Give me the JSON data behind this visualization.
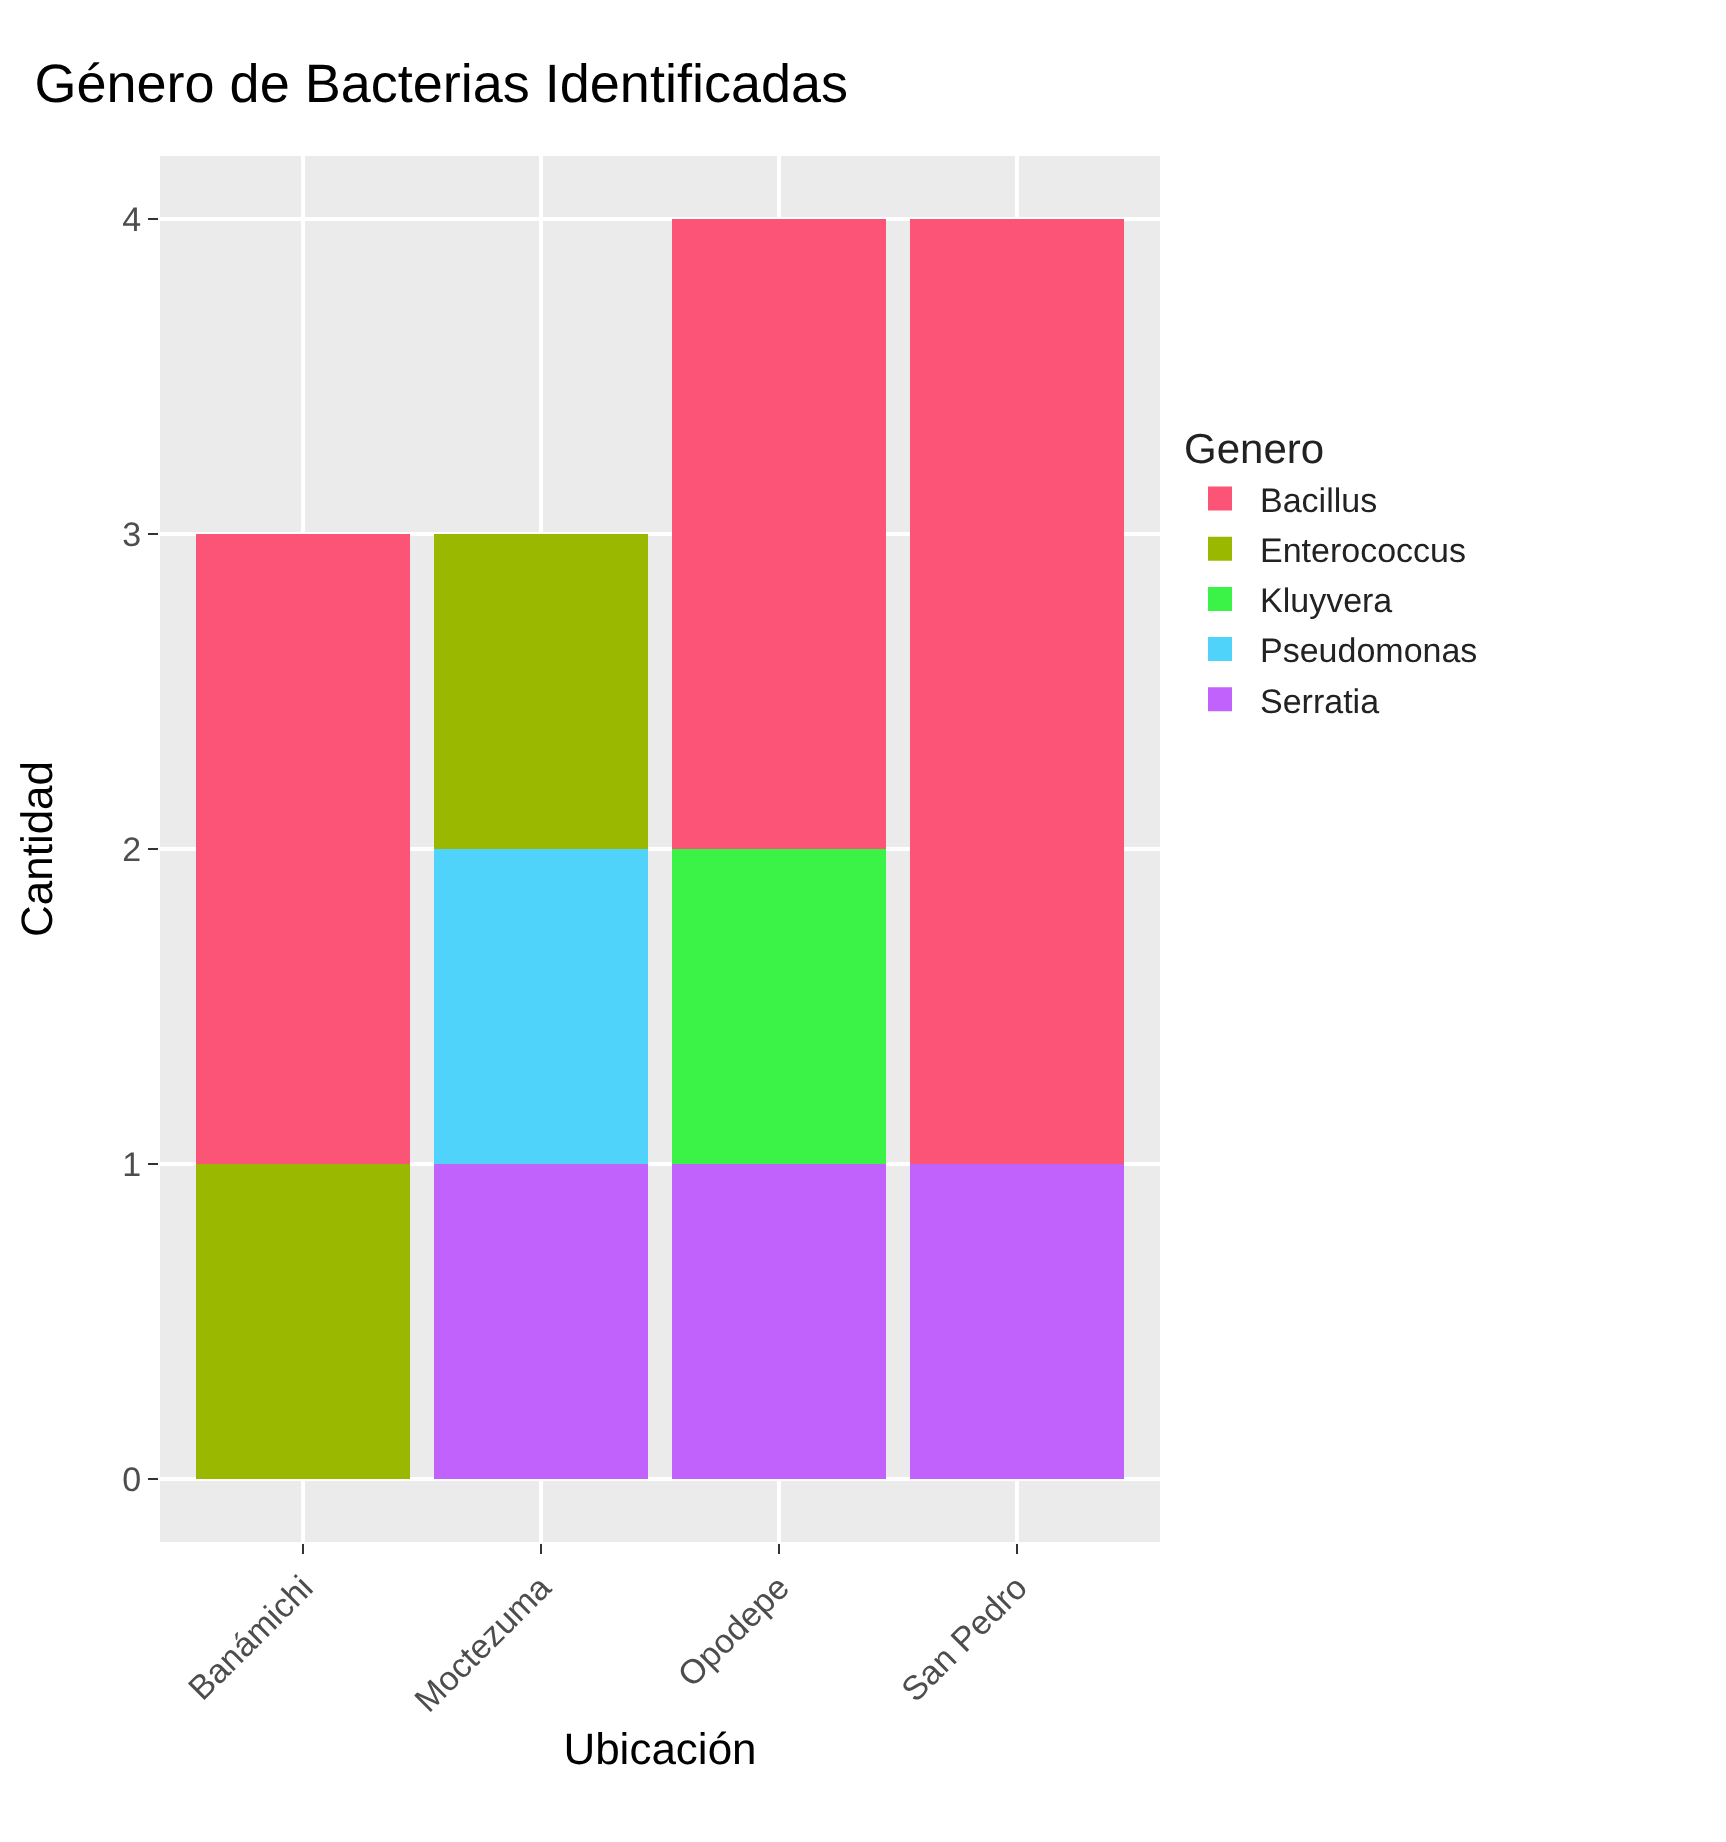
{
  "chart_data": {
    "type": "bar",
    "title": "Género de Bacterias Identificadas",
    "xlabel": "Ubicación",
    "ylabel": "Cantidad",
    "legend_title": "Genero",
    "categories": [
      "Banámichi",
      "Moctezuma",
      "Opodepe",
      "San Pedro"
    ],
    "stacked": true,
    "series": [
      {
        "name": "Serratia",
        "color": "#c062fb",
        "values": [
          null,
          1,
          1,
          1
        ]
      },
      {
        "name": "Pseudomonas",
        "color": "#4fd3fb",
        "values": [
          null,
          1,
          null,
          null
        ]
      },
      {
        "name": "Kluyvera",
        "color": "#3bf346",
        "values": [
          null,
          null,
          1,
          null
        ]
      },
      {
        "name": "Enterococcus",
        "color": "#9bb800",
        "values": [
          1,
          1,
          null,
          null
        ]
      },
      {
        "name": "Bacillus",
        "color": "#fb5476",
        "values": [
          2,
          null,
          2,
          3
        ]
      }
    ],
    "ylim": [
      -0.2,
      4.2
    ],
    "yticks": [
      0,
      1,
      2,
      3,
      4
    ],
    "grid": true,
    "legend": "right"
  }
}
